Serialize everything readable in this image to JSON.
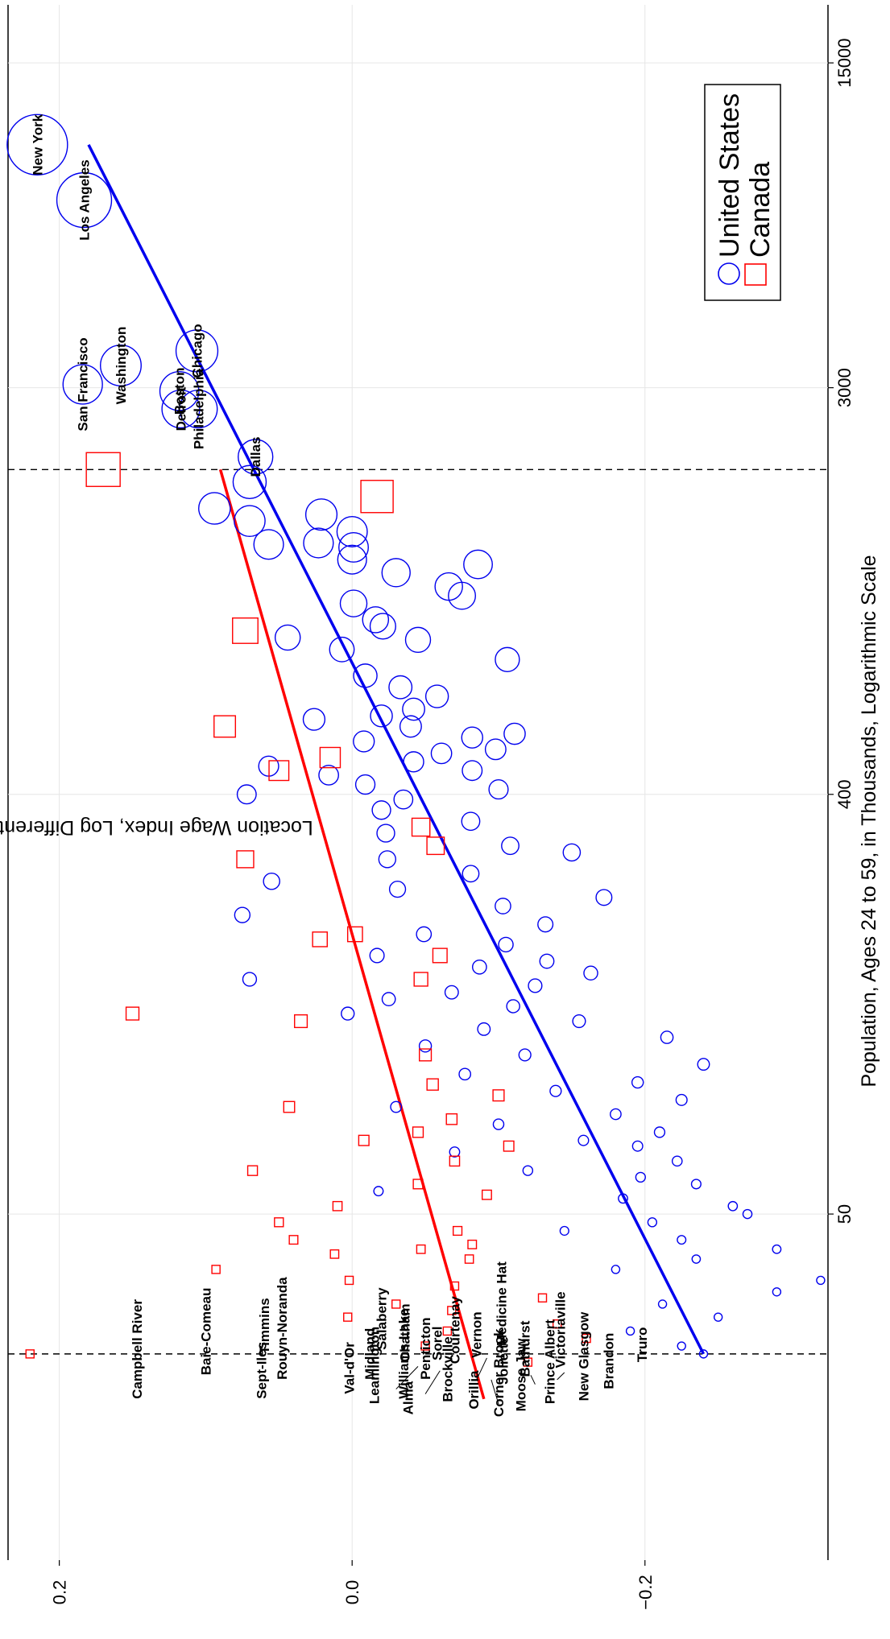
{
  "chart_data": {
    "type": "scatter",
    "orientation": "rotated 90 degrees clockwise",
    "title": "",
    "xlabel": "Population, Ages 24 to 59, in Thousands, Logarithmic Scale",
    "ylabel": "Location Wage Index, Log Differential Relative to National Average",
    "x_scale": "log",
    "xlim": [
      9,
      20000
    ],
    "ylim": [
      -0.325,
      0.235
    ],
    "x_ticks": [
      {
        "value": 50,
        "label": "50"
      },
      {
        "value": 400,
        "label": "400"
      },
      {
        "value": 3000,
        "label": "3000"
      },
      {
        "value": 15000,
        "label": "15000"
      }
    ],
    "y_ticks": [
      {
        "value": 0.2,
        "label": "0.2"
      },
      {
        "value": 0.0,
        "label": "0.0"
      },
      {
        "value": -0.2,
        "label": "−0.2"
      }
    ],
    "grid": true,
    "legend_position": "top-right",
    "reference_lines": [
      {
        "x": 25,
        "style": "dashed"
      },
      {
        "x": 2000,
        "style": "dashed"
      }
    ],
    "series": [
      {
        "name": "United States",
        "marker": "circle",
        "color": "#0000ee",
        "fit_line": {
          "x": [
            25,
            10000
          ],
          "y": [
            -0.24,
            0.18
          ]
        },
        "points": [
          {
            "x": 10000,
            "y": 0.215,
            "label": "New York"
          },
          {
            "x": 7600,
            "y": 0.183,
            "label": "Los Angeles"
          },
          {
            "x": 3600,
            "y": 0.106,
            "label": "Chicago"
          },
          {
            "x": 3350,
            "y": 0.158,
            "label": "Washington"
          },
          {
            "x": 3050,
            "y": 0.184,
            "label": "San Francisco"
          },
          {
            "x": 2950,
            "y": 0.118,
            "label": "Boston"
          },
          {
            "x": 2700,
            "y": 0.105,
            "label": "Philadelphia"
          },
          {
            "x": 2700,
            "y": 0.117,
            "label": "Detroit"
          },
          {
            "x": 2130,
            "y": 0.066,
            "label": "Dallas"
          },
          {
            "x": 1880,
            "y": 0.07
          },
          {
            "x": 1650,
            "y": 0.094
          },
          {
            "x": 1600,
            "y": 0.021
          },
          {
            "x": 1550,
            "y": 0.07
          },
          {
            "x": 1470,
            "y": 0.0
          },
          {
            "x": 1390,
            "y": 0.023
          },
          {
            "x": 1380,
            "y": 0.057
          },
          {
            "x": 1360,
            "y": -0.001
          },
          {
            "x": 1280,
            "y": 0.0
          },
          {
            "x": 1250,
            "y": -0.086
          },
          {
            "x": 1200,
            "y": -0.03
          },
          {
            "x": 1120,
            "y": -0.066
          },
          {
            "x": 1070,
            "y": -0.075
          },
          {
            "x": 1030,
            "y": -0.001
          },
          {
            "x": 950,
            "y": -0.016
          },
          {
            "x": 920,
            "y": -0.021
          },
          {
            "x": 870,
            "y": 0.044
          },
          {
            "x": 860,
            "y": -0.045
          },
          {
            "x": 820,
            "y": 0.007
          },
          {
            "x": 780,
            "y": -0.106
          },
          {
            "x": 720,
            "y": -0.009
          },
          {
            "x": 680,
            "y": -0.033
          },
          {
            "x": 650,
            "y": -0.058
          },
          {
            "x": 610,
            "y": -0.042
          },
          {
            "x": 590,
            "y": -0.02
          },
          {
            "x": 580,
            "y": 0.026
          },
          {
            "x": 560,
            "y": -0.04
          },
          {
            "x": 540,
            "y": -0.111
          },
          {
            "x": 530,
            "y": -0.082
          },
          {
            "x": 520,
            "y": -0.008
          },
          {
            "x": 500,
            "y": -0.098
          },
          {
            "x": 490,
            "y": -0.061
          },
          {
            "x": 470,
            "y": -0.042
          },
          {
            "x": 460,
            "y": 0.057
          },
          {
            "x": 450,
            "y": -0.082
          },
          {
            "x": 440,
            "y": 0.016
          },
          {
            "x": 420,
            "y": -0.009
          },
          {
            "x": 410,
            "y": -0.1
          },
          {
            "x": 400,
            "y": 0.072
          },
          {
            "x": 390,
            "y": -0.035
          },
          {
            "x": 370,
            "y": -0.02
          },
          {
            "x": 350,
            "y": -0.081
          },
          {
            "x": 330,
            "y": -0.023
          },
          {
            "x": 310,
            "y": -0.108
          },
          {
            "x": 300,
            "y": -0.15
          },
          {
            "x": 290,
            "y": -0.024
          },
          {
            "x": 270,
            "y": -0.081
          },
          {
            "x": 260,
            "y": 0.055
          },
          {
            "x": 250,
            "y": -0.031
          },
          {
            "x": 240,
            "y": -0.172
          },
          {
            "x": 230,
            "y": -0.103
          },
          {
            "x": 220,
            "y": 0.075
          },
          {
            "x": 210,
            "y": -0.132
          },
          {
            "x": 200,
            "y": -0.049
          },
          {
            "x": 190,
            "y": -0.105
          },
          {
            "x": 180,
            "y": -0.017
          },
          {
            "x": 175,
            "y": -0.133
          },
          {
            "x": 170,
            "y": -0.087
          },
          {
            "x": 165,
            "y": -0.163
          },
          {
            "x": 160,
            "y": 0.07
          },
          {
            "x": 155,
            "y": -0.125
          },
          {
            "x": 150,
            "y": -0.068
          },
          {
            "x": 145,
            "y": -0.025
          },
          {
            "x": 140,
            "y": -0.11
          },
          {
            "x": 135,
            "y": 0.003
          },
          {
            "x": 130,
            "y": -0.155
          },
          {
            "x": 125,
            "y": -0.09
          },
          {
            "x": 120,
            "y": -0.215
          },
          {
            "x": 115,
            "y": -0.05
          },
          {
            "x": 110,
            "y": -0.118
          },
          {
            "x": 105,
            "y": -0.24
          },
          {
            "x": 100,
            "y": -0.077
          },
          {
            "x": 96,
            "y": -0.195
          },
          {
            "x": 92,
            "y": -0.139
          },
          {
            "x": 88,
            "y": -0.225
          },
          {
            "x": 85,
            "y": -0.03
          },
          {
            "x": 82,
            "y": -0.18
          },
          {
            "x": 78,
            "y": -0.1
          },
          {
            "x": 75,
            "y": -0.21
          },
          {
            "x": 72,
            "y": -0.158
          },
          {
            "x": 70,
            "y": -0.195
          },
          {
            "x": 68,
            "y": -0.07
          },
          {
            "x": 65,
            "y": -0.222
          },
          {
            "x": 62,
            "y": -0.12
          },
          {
            "x": 60,
            "y": -0.197
          },
          {
            "x": 58,
            "y": -0.235
          },
          {
            "x": 56,
            "y": -0.018
          },
          {
            "x": 54,
            "y": -0.185
          },
          {
            "x": 52,
            "y": -0.26
          },
          {
            "x": 50,
            "y": -0.27
          },
          {
            "x": 48,
            "y": -0.205
          },
          {
            "x": 46,
            "y": -0.145
          },
          {
            "x": 44,
            "y": -0.225
          },
          {
            "x": 42,
            "y": -0.29
          },
          {
            "x": 40,
            "y": -0.235
          },
          {
            "x": 38,
            "y": -0.18
          },
          {
            "x": 36,
            "y": -0.32
          },
          {
            "x": 34,
            "y": -0.29
          },
          {
            "x": 32,
            "y": -0.212
          },
          {
            "x": 30,
            "y": -0.25
          },
          {
            "x": 28,
            "y": -0.19
          },
          {
            "x": 26,
            "y": -0.225
          },
          {
            "x": 25,
            "y": -0.24
          }
        ]
      },
      {
        "name": "Canada",
        "marker": "square",
        "color": "#ff0000",
        "fit_line": {
          "x": [
            20,
            2000
          ],
          "y": [
            -0.09,
            0.09
          ]
        },
        "points": [
          {
            "x": 2000,
            "y": 0.17
          },
          {
            "x": 1750,
            "y": -0.017
          },
          {
            "x": 900,
            "y": 0.073
          },
          {
            "x": 560,
            "y": 0.087
          },
          {
            "x": 480,
            "y": 0.015
          },
          {
            "x": 450,
            "y": 0.05
          },
          {
            "x": 340,
            "y": -0.047
          },
          {
            "x": 310,
            "y": -0.057
          },
          {
            "x": 290,
            "y": 0.073
          },
          {
            "x": 200,
            "y": -0.002
          },
          {
            "x": 195,
            "y": 0.022
          },
          {
            "x": 180,
            "y": -0.06
          },
          {
            "x": 160,
            "y": -0.047
          },
          {
            "x": 135,
            "y": 0.15
          },
          {
            "x": 130,
            "y": 0.035
          },
          {
            "x": 110,
            "y": -0.05
          },
          {
            "x": 95,
            "y": -0.055
          },
          {
            "x": 90,
            "y": -0.1
          },
          {
            "x": 85,
            "y": 0.043
          },
          {
            "x": 80,
            "y": -0.068
          },
          {
            "x": 75,
            "y": -0.045
          },
          {
            "x": 72,
            "y": -0.008
          },
          {
            "x": 70,
            "y": -0.107
          },
          {
            "x": 65,
            "y": -0.07
          },
          {
            "x": 62,
            "y": 0.068
          },
          {
            "x": 58,
            "y": -0.045
          },
          {
            "x": 55,
            "y": -0.092
          },
          {
            "x": 52,
            "y": 0.01
          },
          {
            "x": 48,
            "y": 0.05
          },
          {
            "x": 46,
            "y": -0.072
          },
          {
            "x": 44,
            "y": 0.04
          },
          {
            "x": 43,
            "y": -0.082
          },
          {
            "x": 42,
            "y": -0.047
          },
          {
            "x": 41,
            "y": 0.012
          },
          {
            "x": 40,
            "y": -0.08
          },
          {
            "x": 38,
            "y": 0.093
          },
          {
            "x": 36,
            "y": 0.002
          },
          {
            "x": 35,
            "y": -0.07
          },
          {
            "x": 33,
            "y": -0.13
          },
          {
            "x": 32,
            "y": -0.03
          },
          {
            "x": 31,
            "y": -0.068
          },
          {
            "x": 30,
            "y": 0.003
          },
          {
            "x": 29,
            "y": -0.14
          },
          {
            "x": 28,
            "y": -0.065
          },
          {
            "x": 27,
            "y": -0.16
          },
          {
            "x": 26,
            "y": -0.05
          },
          {
            "x": 25,
            "y": 0.22
          },
          {
            "x": 24,
            "y": -0.12
          }
        ]
      }
    ],
    "annotations": [
      {
        "label": "Campbell River",
        "x": 20,
        "y": 0.147
      },
      {
        "label": "Baie-Comeau",
        "x": 22.5,
        "y": 0.1
      },
      {
        "label": "Sept-Iles",
        "x": 20,
        "y": 0.062
      },
      {
        "label": "Timmins",
        "x": 25,
        "y": 0.06
      },
      {
        "label": "Rouyn-Noranda",
        "x": 22,
        "y": 0.048
      },
      {
        "label": "Val-d'Or",
        "x": 20.5,
        "y": 0.002
      },
      {
        "label": "Leamington",
        "x": 19.5,
        "y": -0.015
      },
      {
        "label": "Midland",
        "x": 22,
        "y": -0.012
      },
      {
        "label": "Salaberry",
        "x": 25.5,
        "y": -0.02
      },
      {
        "label": "Williams Lake",
        "x": 20,
        "y": -0.035
      },
      {
        "label": "Chatham",
        "x": 24,
        "y": -0.036
      },
      {
        "label": "Alma",
        "x": 18.5,
        "y": -0.038
      },
      {
        "label": "Penticton",
        "x": 22,
        "y": -0.05
      },
      {
        "label": "Sorel",
        "x": 24.2,
        "y": -0.058
      },
      {
        "label": "Brockville",
        "x": 19.7,
        "y": -0.065
      },
      {
        "label": "Courtenay",
        "x": 23.8,
        "y": -0.07
      },
      {
        "label": "Orillia",
        "x": 19,
        "y": -0.083
      },
      {
        "label": "Vernon",
        "x": 24.5,
        "y": -0.085
      },
      {
        "label": "Medicine Hat",
        "x": 26,
        "y": -0.102
      },
      {
        "label": "Corner Brook",
        "x": 18.3,
        "y": -0.1
      },
      {
        "label": "Joliette",
        "x": 21.5,
        "y": -0.103
      },
      {
        "label": "Moose Jaw",
        "x": 18.8,
        "y": -0.115
      },
      {
        "label": "Bathurst",
        "x": 22.3,
        "y": -0.118
      },
      {
        "label": "Victoriaville",
        "x": 23.3,
        "y": -0.142
      },
      {
        "label": "Prince Albert",
        "x": 19.5,
        "y": -0.135
      },
      {
        "label": "New Glasgow",
        "x": 19.8,
        "y": -0.158
      },
      {
        "label": "Brandon",
        "x": 21,
        "y": -0.175
      },
      {
        "label": "Truro",
        "x": 24,
        "y": -0.198
      }
    ]
  }
}
